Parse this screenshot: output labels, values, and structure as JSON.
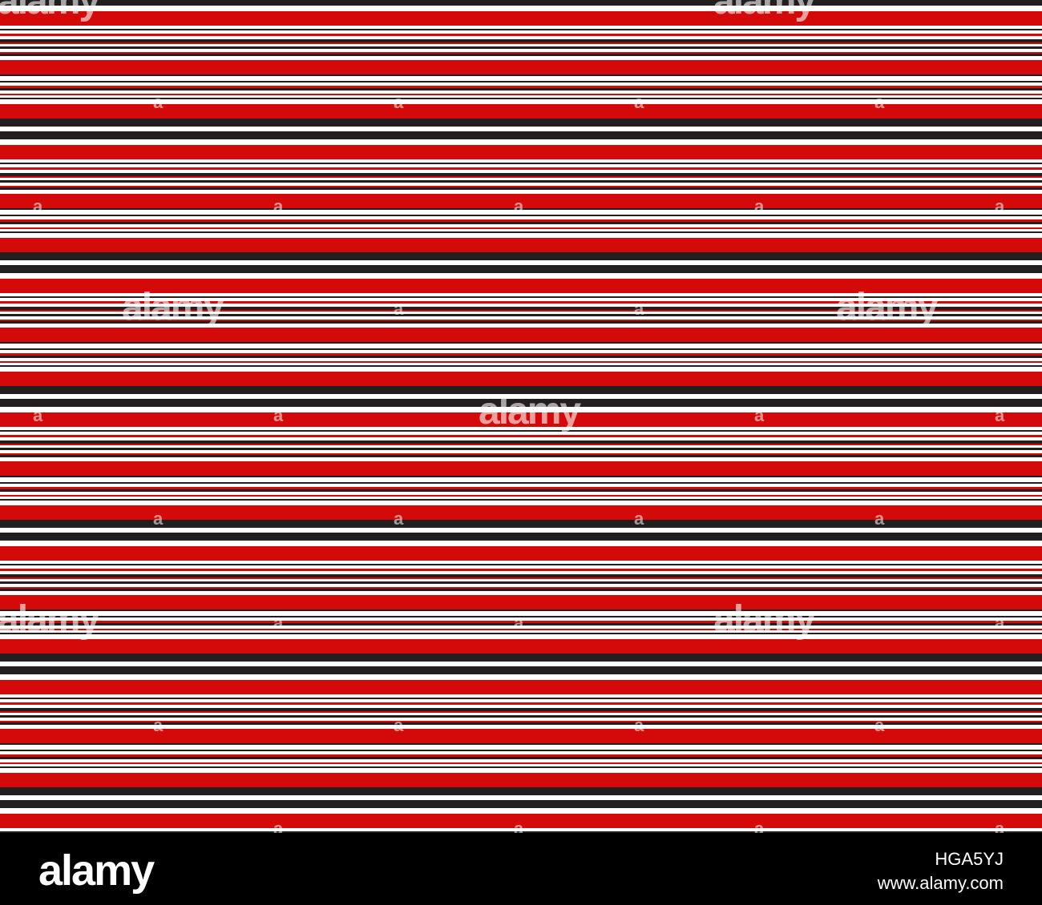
{
  "colors": {
    "red": "#d40a0a",
    "black": "#231f20",
    "white": "#ffffff",
    "footer_bg": "#000000"
  },
  "watermark": {
    "word": "alamy",
    "letter": "a"
  },
  "footer": {
    "logo": "alamy",
    "image_id": "HGA5YJ",
    "url": "www.alamy.com"
  }
}
